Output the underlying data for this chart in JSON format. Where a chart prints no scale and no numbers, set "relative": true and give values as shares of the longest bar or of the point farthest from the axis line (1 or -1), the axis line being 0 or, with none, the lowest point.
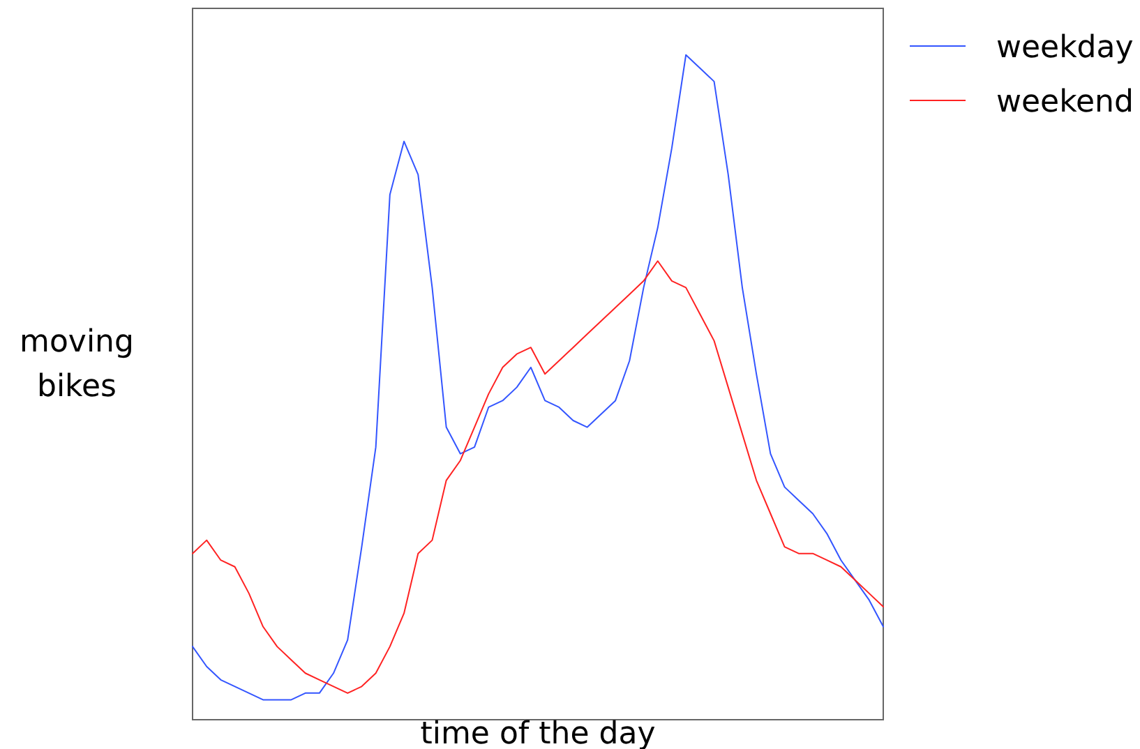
{
  "chart_data": {
    "type": "line",
    "relative": true,
    "xlabel": "time of the day",
    "ylabel": "moving\nbikes",
    "legend": "top right",
    "categories": [
      null,
      null,
      null,
      null,
      null,
      null,
      null,
      null,
      null,
      null,
      null,
      null,
      null,
      null,
      null,
      null,
      null,
      null,
      null,
      null,
      null,
      null,
      null,
      null,
      null,
      null,
      null,
      null,
      null,
      null,
      null,
      null,
      null,
      null,
      null,
      null,
      null,
      null,
      null,
      null,
      null,
      null,
      null,
      null,
      null,
      null,
      null,
      null,
      null,
      null
    ],
    "series": [
      {
        "name": "weekday",
        "color": "#3355ff",
        "values": [
          0.11,
          0.08,
          0.06,
          0.05,
          0.04,
          0.03,
          0.03,
          0.03,
          0.04,
          0.04,
          0.07,
          0.12,
          0.26,
          0.41,
          0.79,
          0.87,
          0.82,
          0.65,
          0.44,
          0.4,
          0.41,
          0.47,
          0.48,
          0.5,
          0.53,
          0.48,
          0.47,
          0.45,
          0.44,
          0.46,
          0.48,
          0.54,
          0.65,
          0.74,
          0.86,
          1,
          0.98,
          0.96,
          0.82,
          0.65,
          0.52,
          0.4,
          0.35,
          0.33,
          0.31,
          0.28,
          0.24,
          0.21,
          0.18,
          0.14
        ]
      },
      {
        "name": "weekend",
        "color": "#ff2222",
        "values": [
          0.25,
          0.27,
          0.24,
          0.23,
          0.19,
          0.14,
          0.11,
          0.09,
          0.07,
          0.06,
          0.05,
          0.04,
          0.05,
          0.07,
          0.11,
          0.16,
          0.25,
          0.27,
          0.36,
          0.39,
          0.44,
          0.49,
          0.53,
          0.55,
          0.56,
          0.52,
          0.54,
          0.56,
          0.58,
          0.6,
          0.62,
          0.64,
          0.66,
          0.69,
          0.66,
          0.65,
          0.61,
          0.57,
          0.5,
          0.43,
          0.36,
          0.31,
          0.26,
          0.25,
          0.25,
          0.24,
          0.23,
          0.21,
          0.19,
          0.17
        ]
      }
    ]
  }
}
